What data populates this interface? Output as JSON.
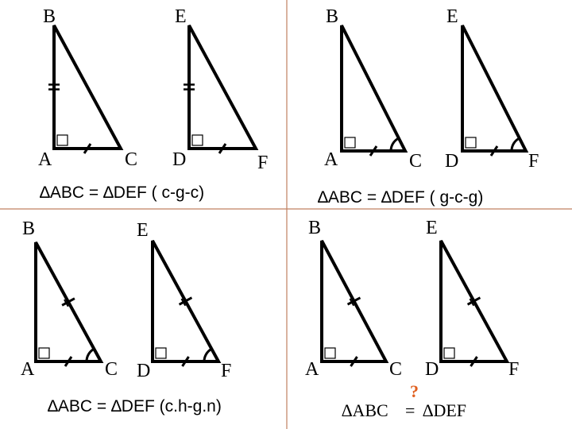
{
  "panels": [
    {
      "labels": [
        "B",
        "E",
        "A",
        "C",
        "D",
        "F"
      ],
      "caption": "∆ABC = ∆DEF ( c-g-c)"
    },
    {
      "labels": [
        "B",
        "E",
        "A",
        "C",
        "D",
        "F"
      ],
      "caption": "∆ABC = ∆DEF ( g-c-g)"
    },
    {
      "labels": [
        "B",
        "E",
        "A",
        "C",
        "D",
        "F"
      ],
      "caption": "∆ABC = ∆DEF (c.h-g.n)"
    },
    {
      "labels": [
        "B",
        "E",
        "A",
        "C",
        "D",
        "F"
      ],
      "caption": {
        "left": "∆ABC",
        "relation": "=",
        "question": "?",
        "right": "∆DEF"
      }
    }
  ]
}
